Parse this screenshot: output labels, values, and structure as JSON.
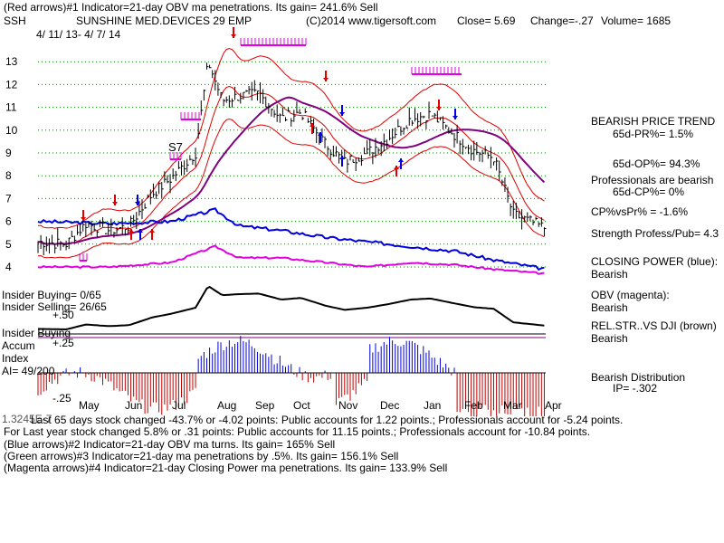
{
  "header": {
    "line1": "(Red arrows)#1 Indicator=21-day OBV ma penetrations. Its gain= 241.6% Sell",
    "ticker": "SSH",
    "company": "SUNSHINE MED.DEVICES 29 EMP",
    "copyright": "(C)2014 www.tigersoft.com",
    "close": "Close=  5.69",
    "change": "Change=-.27",
    "volume": "Volume= 1685",
    "date_range": "4/ 11/ 13-  4/ 7/ 14"
  },
  "annotations": {
    "s7": "S7"
  },
  "side_panel": {
    "trend_title": "BEARISH PRICE TREND",
    "pr": "65d-PR%= 1.5%",
    "op": "65d-OP%= 94.3%",
    "pros_bearish": "Professionals are bearish",
    "cp": "65d-CP%= 0%",
    "cpvspr": "CP%vsPr% = -1.6%",
    "strength": "Strength Profess/Pub= 4.3",
    "closing_power": "CLOSING POWER (blue):",
    "closing_power_val": "Bearish",
    "obv": "OBV (magenta):",
    "obv_val": "Bearish",
    "relstr": "REL.STR..VS DJI (brown)",
    "relstr_val": "Bearish",
    "distribution": "Bearish Distribution",
    "ip": "IP= -.302"
  },
  "insider": {
    "buying_count": "Insider Buying= 0/65",
    "selling_count": "Insider Selling= 26/65",
    "buying_label": "Insider Buying",
    "accum": "Accum",
    "index": "Index",
    "ai": "AI= 49/200"
  },
  "footer": {
    "line1": "Last 65 days stock changed -43.7% or -4.02 points:  Public accounts for  1.22 points.;  Professionals account for -5.24 points.",
    "line2": "For Last year stock changed  5.8% or  .31 points:  Public accounts for  11.15 points.;  Professionals account for -10.84 points.",
    "line3": "(Blue arrows)#2 Indicator=21-day OBV ma turns. Its gain= 165% Sell",
    "line4": "(Green arrows)#3 Indicator=21-day ma penetrations by .5%. Its gain= 156.1% Sell",
    "line5": "(Magenta arrows)#4 Indicator=21-day Closing Power ma penetrations. Its gain= 133.9% Sell",
    "overlap": "1.3245E-7"
  },
  "colors": {
    "price": "#000000",
    "ma_red": "#e00000",
    "ma_purple": "#800080",
    "closing_power": "#0000e0",
    "obv": "#e000e0",
    "grid": "#008000",
    "accum_pos": "#0000e0",
    "accum_neg": "#c00000"
  },
  "chart_data": {
    "type": "line",
    "title": "SUNSHINE MED.DEVICES 29 EMP",
    "price_ticks": [
      13,
      12,
      11,
      10,
      9,
      8,
      7,
      6,
      5,
      4
    ],
    "ylim": [
      4,
      13
    ],
    "months": [
      "May",
      "Jun",
      "Jul",
      "Aug",
      "Sep",
      "Oct",
      "Nov",
      "Dec",
      "Jan",
      "Feb",
      "Mar",
      "Apr"
    ],
    "accum_ticks": [
      "+.50",
      "+.25",
      "-.25"
    ],
    "grid": true,
    "series": [
      {
        "name": "Close",
        "x": [
          "2013-04-11",
          "2013-05-01",
          "2013-05-15",
          "2013-06-01",
          "2013-06-15",
          "2013-07-01",
          "2013-07-15",
          "2013-08-01",
          "2013-08-10",
          "2013-08-20",
          "2013-09-01",
          "2013-09-15",
          "2013-10-01",
          "2013-10-15",
          "2013-11-01",
          "2013-11-15",
          "2013-12-01",
          "2013-12-15",
          "2014-01-01",
          "2014-01-15",
          "2014-02-01",
          "2014-02-15",
          "2014-03-01",
          "2014-03-15",
          "2014-04-07"
        ],
        "values": [
          5.1,
          5.0,
          5.9,
          5.6,
          5.8,
          7.2,
          7.9,
          9.0,
          13.0,
          11.3,
          11.5,
          11.6,
          10.5,
          10.8,
          9.4,
          8.6,
          9.0,
          9.6,
          10.5,
          10.7,
          9.8,
          9.1,
          8.8,
          6.3,
          5.69
        ]
      },
      {
        "name": "CLOSING POWER (blue)",
        "x": [
          "2013-04-11",
          "2013-06-01",
          "2013-07-15",
          "2013-08-15",
          "2013-09-01",
          "2013-10-01",
          "2013-11-01",
          "2013-12-01",
          "2014-01-01",
          "2014-02-01",
          "2014-03-01",
          "2014-04-07"
        ],
        "values": [
          6.0,
          5.9,
          6.0,
          6.5,
          5.8,
          5.6,
          5.3,
          5.1,
          4.9,
          4.7,
          4.3,
          3.9
        ]
      },
      {
        "name": "OBV (magenta)",
        "x": [
          "2013-04-11",
          "2013-06-01",
          "2013-07-15",
          "2013-08-15",
          "2013-09-01",
          "2013-10-01",
          "2013-11-01",
          "2013-12-01",
          "2014-01-01",
          "2014-02-01",
          "2014-03-01",
          "2014-04-07"
        ],
        "values": [
          4.0,
          4.0,
          4.2,
          4.9,
          4.4,
          4.4,
          4.2,
          4.0,
          4.2,
          4.1,
          3.9,
          3.7
        ]
      }
    ]
  }
}
